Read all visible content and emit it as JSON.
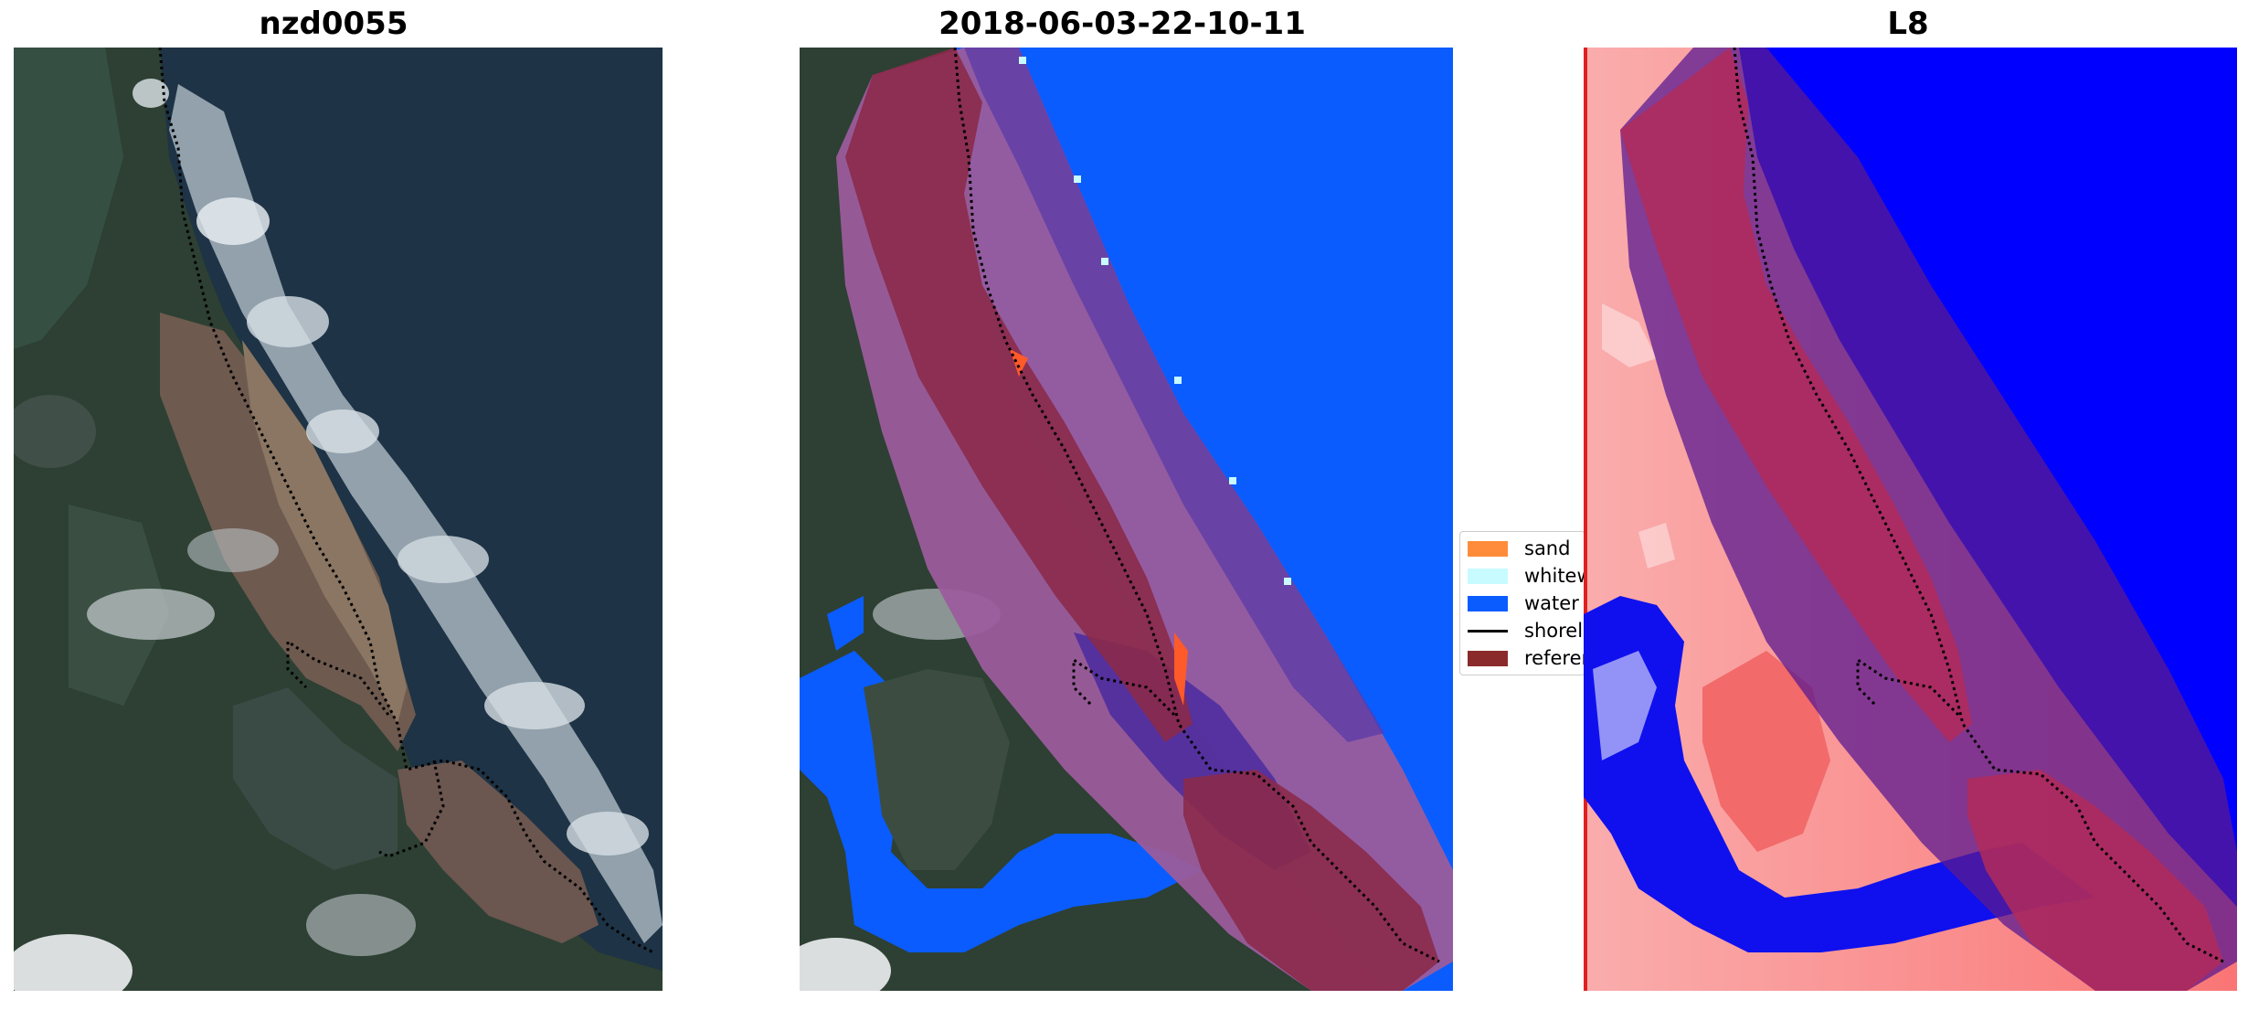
{
  "panels": [
    {
      "title": "nzd0055"
    },
    {
      "title": "2018-06-03-22-10-11"
    },
    {
      "title": "L8"
    }
  ],
  "legend": {
    "items": [
      {
        "label": "sand",
        "color": "#ff8c3a"
      },
      {
        "label": "whitewater",
        "color": "#c8fbff"
      },
      {
        "label": "water",
        "color": "#0a5cff"
      },
      {
        "label": "shoreline",
        "color": "#000000"
      },
      {
        "label": "reference",
        "color": "#8b2a2a"
      }
    ]
  },
  "colors": {
    "ocean": "#1b3448",
    "land": "#2f4436",
    "sand": "#8a7663",
    "water_class": "#0a5cff",
    "buffer": "#9b5c9c",
    "index_high": "#f2605f",
    "index_low": "#0000ff",
    "reference_overlay": "#8b2a4a"
  }
}
